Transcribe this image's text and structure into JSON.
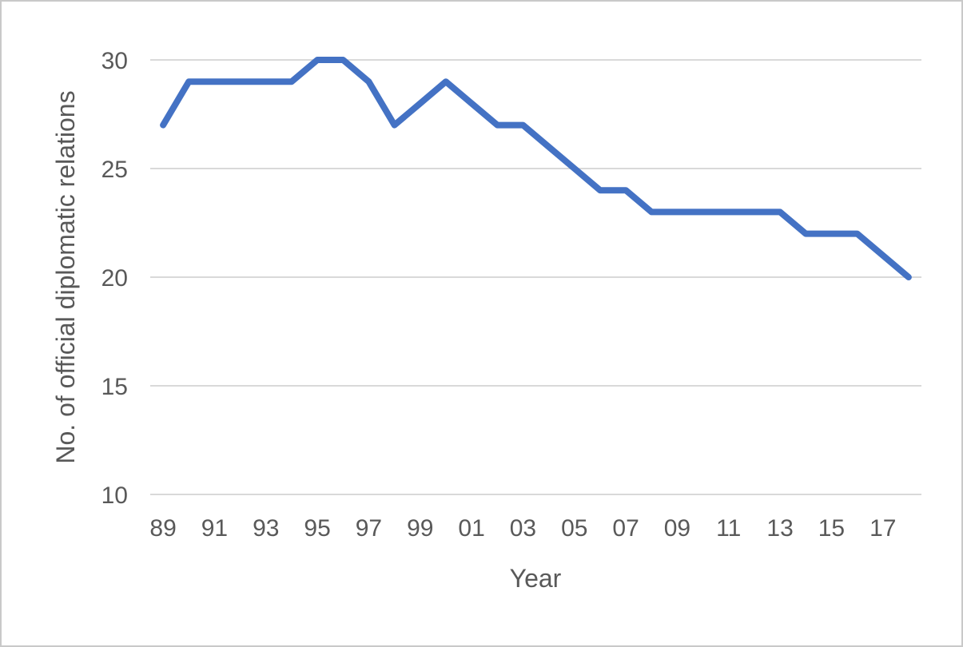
{
  "chart_data": {
    "type": "line",
    "title": "",
    "xlabel": "Year",
    "ylabel": "No. of official diplomatic relations",
    "years": [
      1989,
      1990,
      1991,
      1992,
      1993,
      1994,
      1995,
      1996,
      1997,
      1998,
      1999,
      2000,
      2001,
      2002,
      2003,
      2004,
      2005,
      2006,
      2007,
      2008,
      2009,
      2010,
      2011,
      2012,
      2013,
      2014,
      2015,
      2016,
      2017,
      2018
    ],
    "series": [
      {
        "name": "No. of official diplomatic relations",
        "values": [
          27,
          29,
          29,
          29,
          29,
          29,
          30,
          30,
          29,
          27,
          28,
          29,
          28,
          27,
          27,
          26,
          25,
          24,
          24,
          23,
          23,
          23,
          23,
          23,
          23,
          22,
          22,
          22,
          21,
          20
        ]
      }
    ],
    "x_tick_labels": [
      "89",
      "91",
      "93",
      "95",
      "97",
      "99",
      "01",
      "03",
      "05",
      "07",
      "09",
      "11",
      "13",
      "15",
      "17"
    ],
    "x_tick_every": 2,
    "yticks": [
      10,
      15,
      20,
      25,
      30
    ],
    "ylim": [
      10,
      30
    ],
    "grid": true,
    "legend": false,
    "line_color": "#4472C4",
    "grid_color": "#D9D9D9",
    "text_color": "#595959",
    "border_color": "#C9C9C9",
    "line_width": 8
  }
}
